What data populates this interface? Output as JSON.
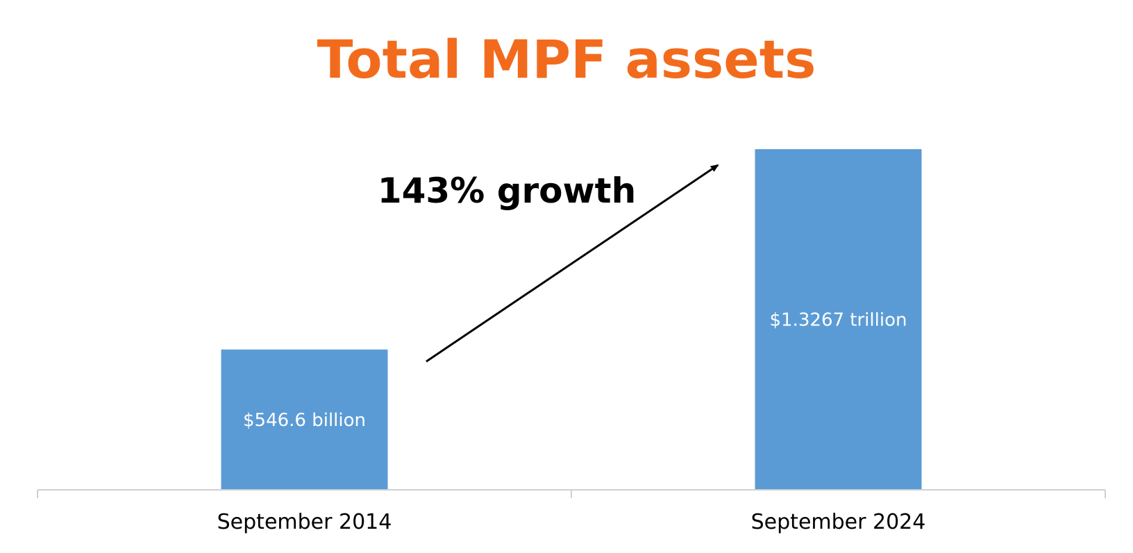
{
  "chart_data": {
    "type": "bar",
    "title": "Total MPF assets",
    "categories": [
      "September 2014",
      "September 2024"
    ],
    "values": [
      546.6,
      1326.7
    ],
    "unit": "HK$ billion",
    "data_labels": [
      "$546.6 billion",
      "$1.3267 trillion"
    ],
    "annotation": "143% growth",
    "xlabel": "",
    "ylabel": "",
    "ylim": [
      0,
      1326.7
    ],
    "grid": false,
    "legend": "none",
    "colors": {
      "title": "#F26B1D",
      "bar": "#5B9BD5",
      "data_label": "#FFFFFF",
      "axis": "#D0D0D0",
      "text": "#000000",
      "arrow": "#000000"
    }
  }
}
